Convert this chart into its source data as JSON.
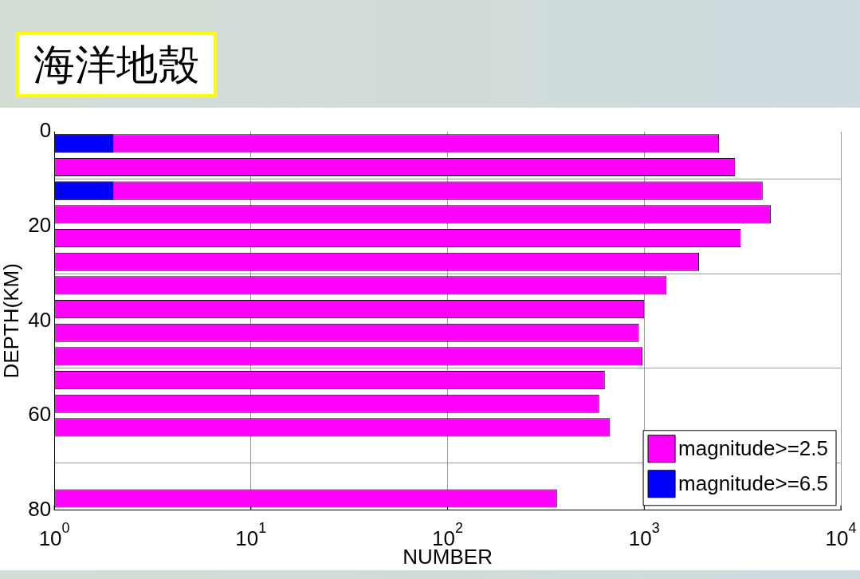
{
  "chart_data": {
    "type": "bar",
    "orientation": "horizontal",
    "title": "海洋地殼",
    "xlabel": "NUMBER",
    "ylabel": "DEPTH(KM)",
    "x": [
      2.5,
      7.5,
      12.5,
      17.5,
      22.5,
      27.5,
      32.5,
      37.5,
      42.5,
      47.5,
      52.5,
      57.5,
      62.5,
      67.5,
      72.5,
      77.5
    ],
    "series": [
      {
        "name": "magnitude>=2.5",
        "color": "#ff00ff",
        "values": [
          2400,
          2900,
          4000,
          4400,
          3100,
          1900,
          1300,
          1000,
          940,
          980,
          630,
          590,
          670,
          null,
          null,
          360
        ]
      },
      {
        "name": "magnitude>=6.5",
        "color": "#0000ff",
        "values": [
          2,
          null,
          2,
          null,
          null,
          null,
          null,
          null,
          null,
          null,
          null,
          null,
          null,
          null,
          null,
          null
        ]
      }
    ],
    "xlim": [
      1,
      10000
    ],
    "xticks": [
      {
        "value": 1,
        "label": "10$^{0}$"
      },
      {
        "value": 10,
        "label": "10$^{1}$"
      },
      {
        "value": 100,
        "label": "10$^{2}$"
      },
      {
        "value": 1000,
        "label": "10$^{3}$"
      },
      {
        "value": 10000,
        "label": "10$^{4}$"
      }
    ],
    "ylim": [
      80,
      0
    ],
    "yticks": [
      0,
      20,
      40,
      60,
      80
    ],
    "log": "x",
    "grid": true,
    "legend": "bottom right"
  }
}
